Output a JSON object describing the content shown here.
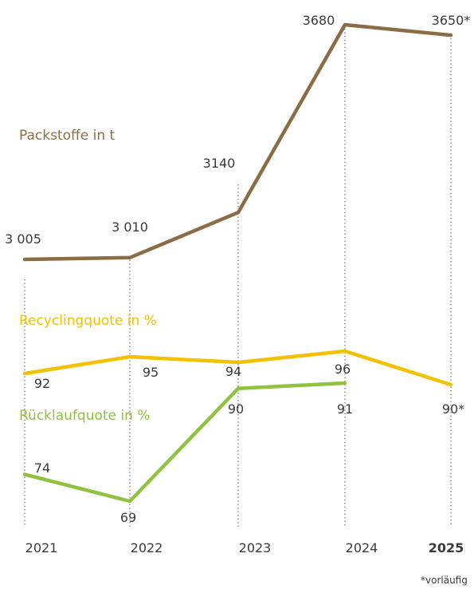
{
  "chart_data": {
    "type": "line",
    "categories": [
      "2021",
      "2022",
      "2023",
      "2024",
      "2025"
    ],
    "highlight_category": "2025",
    "series": [
      {
        "name": "Packstoffe in t",
        "color": "#8a6d45",
        "values": [
          3005,
          3010,
          3140,
          3680,
          3650
        ],
        "labels": [
          "3 005",
          "3 010",
          "3140",
          "3680",
          "3650*"
        ]
      },
      {
        "name": "Recyclingquote in %",
        "color": "#f2c200",
        "values": [
          92,
          95,
          94,
          96,
          90
        ],
        "labels": [
          "92",
          "95",
          "94",
          "96",
          "90*"
        ]
      },
      {
        "name": "Rücklaufquote in %",
        "color": "#8fc23f",
        "values": [
          74,
          69,
          90,
          91,
          null
        ],
        "labels": [
          "74",
          "69",
          "90",
          "91",
          ""
        ]
      }
    ],
    "footnote": "*vorläufig"
  }
}
